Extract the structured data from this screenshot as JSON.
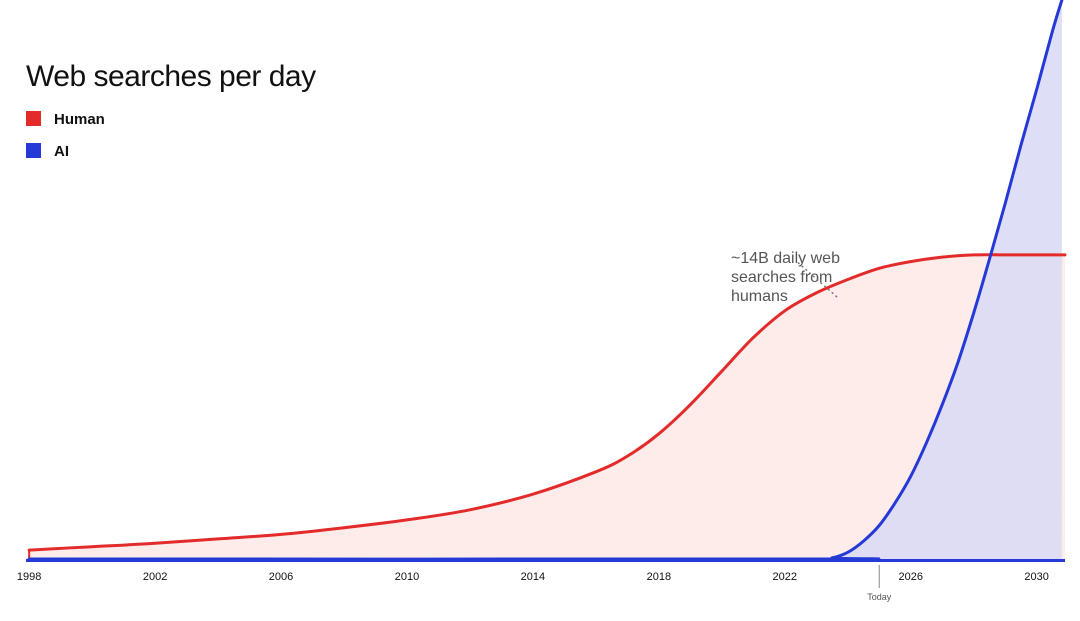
{
  "chart_data": {
    "type": "area",
    "title": "Web searches per day",
    "xlabel": "",
    "ylabel": "",
    "xlim": [
      1997.9,
      2030.9
    ],
    "ylim": [
      0,
      25
    ],
    "x_ticks": [
      1998,
      2002,
      2006,
      2010,
      2014,
      2018,
      2022,
      2026,
      2030
    ],
    "today": {
      "label": "Today",
      "x": 2025
    },
    "legend_position": "top-left",
    "grid": false,
    "series": [
      {
        "name": "Human",
        "color": "#e32b2b",
        "fill": "#fdecea",
        "x": [
          1998,
          2000,
          2002,
          2004,
          2006,
          2008,
          2010,
          2012,
          2014,
          2016,
          2017,
          2018,
          2019,
          2020,
          2021,
          2022,
          2023,
          2024,
          2025,
          2026,
          2027,
          2028,
          2029,
          2030,
          2030.9
        ],
        "y": [
          0.4,
          0.55,
          0.7,
          0.9,
          1.1,
          1.4,
          1.75,
          2.2,
          2.9,
          3.9,
          4.6,
          5.6,
          6.9,
          8.4,
          9.9,
          11.1,
          11.9,
          12.5,
          13.0,
          13.3,
          13.5,
          13.6,
          13.6,
          13.6,
          13.6
        ]
      },
      {
        "name": "AI",
        "color": "#2439d6",
        "fill": "#dadcf5",
        "x": [
          1998,
          2023,
          2023.5,
          2024,
          2024.5,
          2025,
          2025.5,
          2026,
          2026.5,
          2027,
          2027.5,
          2028,
          2028.5,
          2029,
          2029.5,
          2030,
          2030.5,
          2030.8
        ],
        "y": [
          0,
          0,
          0.05,
          0.3,
          0.8,
          1.5,
          2.5,
          3.7,
          5.2,
          6.9,
          8.8,
          11.0,
          13.4,
          15.9,
          18.5,
          21.0,
          23.6,
          25.0
        ]
      }
    ],
    "annotations": [
      {
        "text_lines": [
          "~14B daily web",
          "searches from",
          "humans"
        ],
        "x": 2022.4,
        "y": 13.1
      }
    ]
  }
}
